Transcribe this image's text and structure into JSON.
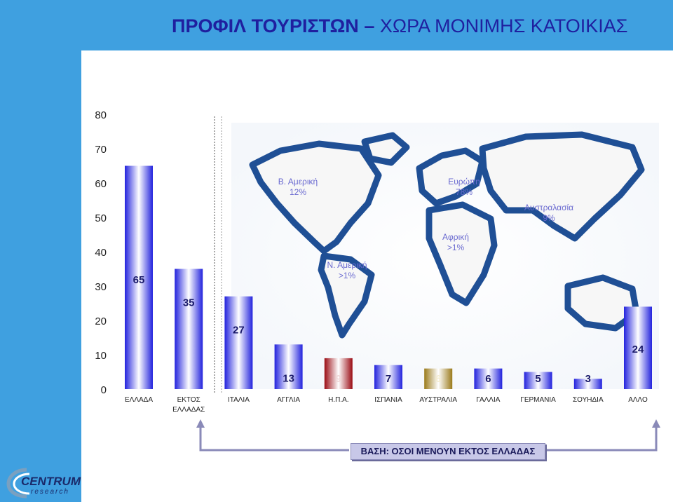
{
  "title": {
    "bold": "ΠΡΟΦΙΛ ΤΟΥΡΙΣΤΩΝ",
    "dash": "–",
    "sub": "ΧΩΡΑ ΜΟΝΙΜΗΣ ΚΑΤΟΙΚΙΑΣ"
  },
  "map_labels": [
    {
      "name": "Β. Αμερική",
      "pct": "12%"
    },
    {
      "name": "Ευρώπη",
      "pct": "78%"
    },
    {
      "name": "Αυστραλασία",
      "pct": "9%"
    },
    {
      "name": "Αφρική",
      "pct": ">1%"
    },
    {
      "name": "Ν. Αμερική",
      "pct": ">1%"
    }
  ],
  "basis": "ΒΑΣΗ: ΟΣΟΙ ΜΕΝΟΥΝ ΕΚΤΟΣ ΕΛΛΑΔΑΣ",
  "logo": {
    "main": "CENTRUM",
    "sub": "research"
  },
  "colors": {
    "blue_bar": "#2222dd",
    "red_bar": "#9a0c14",
    "gold_bar": "#9a7a1a",
    "background_band": "#3fa0e0",
    "title": "#1f1f9f"
  },
  "chart_data": {
    "type": "bar",
    "categories": [
      "ΕΛΛΑΔΑ",
      "ΕΚΤΟΣ ΕΛΛΑΔΑΣ",
      "ΙΤΑΛΙΑ",
      "ΑΓΓΛΙΑ",
      "Η.Π.Α.",
      "ΙΣΠΑΝΙΑ",
      "ΑΥΣΤΡΑΛΙΑ",
      "ΓΑΛΛΙΑ",
      "ΓΕΡΜΑΝΙΑ",
      "ΣΟΥΗΔΙΑ",
      "ΑΛΛΟ"
    ],
    "values": [
      65,
      35,
      27,
      13,
      9,
      7,
      6,
      6,
      5,
      3,
      24
    ],
    "bar_colors": [
      "blue",
      "blue",
      "blue",
      "blue",
      "red",
      "blue",
      "gold",
      "blue",
      "blue",
      "blue",
      "blue"
    ],
    "ylim": [
      0,
      80
    ],
    "yticks": [
      "0",
      "10",
      "20",
      "30",
      "40",
      "50",
      "60",
      "70",
      "80"
    ]
  }
}
